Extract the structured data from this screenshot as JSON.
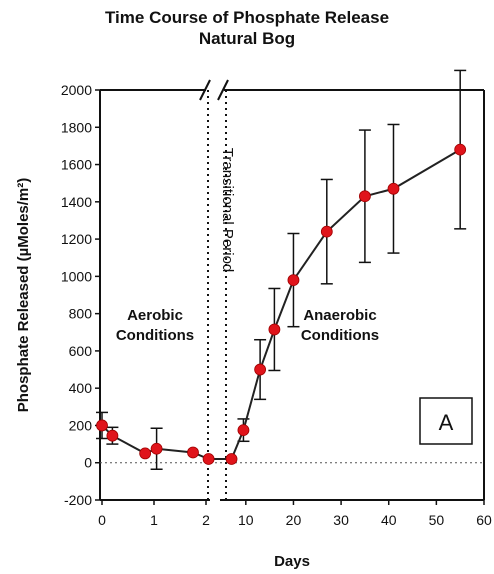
{
  "chart_data": {
    "type": "scatter",
    "title_lines": [
      "Time Course of Phosphate Release",
      "Natural Bog"
    ],
    "xlabel": "Days",
    "ylabel": "Phosphate Released (µMoles/m²)",
    "ylim": [
      -200,
      2000
    ],
    "y_ticks": [
      "2000",
      "1800",
      "1600",
      "1400",
      "1200",
      "1000",
      "800",
      "600",
      "400",
      "200",
      "0",
      "-200"
    ],
    "x_axis_segments": [
      {
        "range": [
          0,
          2
        ],
        "ticks": [
          "0",
          "1",
          "2"
        ]
      },
      {
        "range": [
          5,
          60
        ],
        "ticks": [
          "10",
          "20",
          "30",
          "40",
          "50",
          "60"
        ]
      }
    ],
    "series": [
      {
        "marker_color": "#e0141b",
        "line_color": "#222222",
        "points": [
          {
            "x": 0,
            "y": 200,
            "err": 70
          },
          {
            "x": 0.2,
            "y": 145,
            "err": 45
          },
          {
            "x": 0.83,
            "y": 50,
            "err": 0
          },
          {
            "x": 1.05,
            "y": 75,
            "err": 110
          },
          {
            "x": 1.75,
            "y": 55,
            "err": 0
          },
          {
            "x": 2.05,
            "y": 20,
            "err": 0
          },
          {
            "x": 7,
            "y": 20,
            "err": 0
          },
          {
            "x": 9.5,
            "y": 175,
            "err": 60
          },
          {
            "x": 13,
            "y": 500,
            "err": 160
          },
          {
            "x": 16,
            "y": 715,
            "err": 220
          },
          {
            "x": 20,
            "y": 980,
            "err": 250
          },
          {
            "x": 27,
            "y": 1240,
            "err": 280
          },
          {
            "x": 35,
            "y": 1430,
            "err": 355
          },
          {
            "x": 41,
            "y": 1470,
            "err": 345
          },
          {
            "x": 55,
            "y": 1680,
            "err": 425
          }
        ]
      }
    ],
    "zero_line": "dotted",
    "period_dividers": "dotted vertical",
    "annotations": {
      "aerobic": [
        "Aerobic",
        "Conditions"
      ],
      "transitional": "Transitional Period",
      "anaerobic": [
        "Anaerobic",
        "Conditions"
      ]
    },
    "panel_label": "A",
    "grid": false
  }
}
